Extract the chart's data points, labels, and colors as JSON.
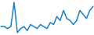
{
  "values": [
    0,
    0,
    -1,
    0,
    12,
    -3,
    -1,
    0,
    -2,
    1,
    0,
    -1,
    1,
    0,
    -1,
    2,
    1,
    5,
    3,
    8,
    4,
    3,
    1,
    3,
    8,
    6,
    4,
    8,
    10
  ],
  "line_color": "#1b7fc4",
  "bg_color": "#ffffff",
  "linewidth": 1.1
}
